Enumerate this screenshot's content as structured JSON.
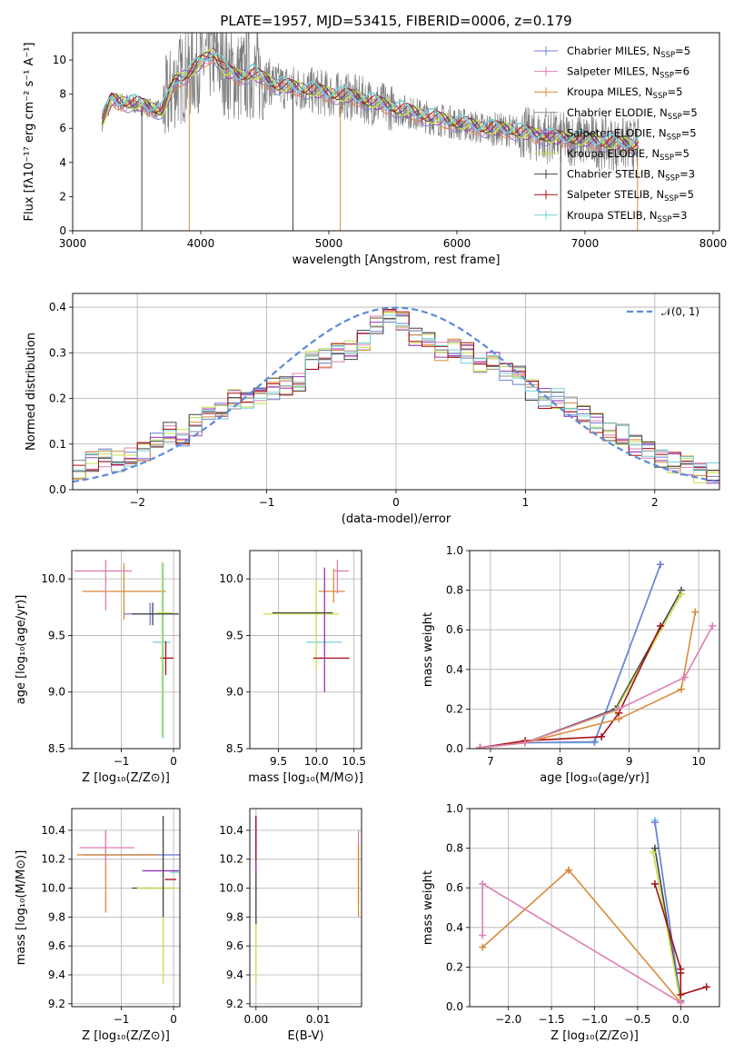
{
  "chart_data": [
    {
      "id": "spectrum",
      "type": "line",
      "title": "PLATE=1957, MJD=53415, FIBERID=0006, z=0.179",
      "xlabel": "wavelength [Angstrom, rest frame]",
      "ylabel": "Flux [fλ10⁻¹⁷ erg cm⁻² s⁻¹ A⁻¹]",
      "xlim": [
        3000,
        8050
      ],
      "ylim": [
        0,
        11.6
      ],
      "xticks": [
        3000,
        4000,
        5000,
        6000,
        7000,
        8000
      ],
      "yticks": [
        0,
        2,
        4,
        6,
        8,
        10
      ],
      "grid": false,
      "legend_position": "top-right",
      "legend": [
        {
          "name": "Chabrier MILES, N",
          "sub": "SSP",
          "suffix": "=5",
          "color": "#6f7fd8"
        },
        {
          "name": "Salpeter MILES, N",
          "sub": "SSP",
          "suffix": "=6",
          "color": "#e07fb4"
        },
        {
          "name": "Kroupa MILES, N",
          "sub": "SSP",
          "suffix": "=5",
          "color": "#d98a3a"
        },
        {
          "name": "Chabrier ELODIE, N",
          "sub": "SSP",
          "suffix": "=5",
          "color": "#8c8c8c"
        },
        {
          "name": "Salpeter ELODIE, N",
          "sub": "SSP",
          "suffix": "=5",
          "color": "#9a33b8"
        },
        {
          "name": "Kroupa ELODIE, N",
          "sub": "SSP",
          "suffix": "=5",
          "color": "#c4e04a"
        },
        {
          "name": "Chabrier STELIB, N",
          "sub": "SSP",
          "suffix": "=3",
          "color": "#444444"
        },
        {
          "name": "Salpeter STELIB, N",
          "sub": "SSP",
          "suffix": "=5",
          "color": "#a50f15"
        },
        {
          "name": "Kroupa STELIB, N",
          "sub": "SSP",
          "suffix": "=3",
          "color": "#73d1d8"
        }
      ],
      "model_continuum": {
        "x": [
          3230,
          3300,
          3400,
          3500,
          3600,
          3700,
          3800,
          3900,
          4000,
          4100,
          4200,
          4300,
          4400,
          4600,
          4800,
          5000,
          5200,
          5400,
          5600,
          5800,
          6000,
          6200,
          6400,
          6600,
          6800,
          7000,
          7200,
          7400
        ],
        "y": [
          6.4,
          7.6,
          7.5,
          7.4,
          7.2,
          7.0,
          8.7,
          9.2,
          9.8,
          10.4,
          9.3,
          9.0,
          9.2,
          8.5,
          8.3,
          8.0,
          7.8,
          7.4,
          7.0,
          6.6,
          6.3,
          6.0,
          5.9,
          5.6,
          5.4,
          5.3,
          5.1,
          5.0
        ]
      },
      "data_spikes": [
        {
          "x": 3540,
          "y": 0
        },
        {
          "x": 3910,
          "y": 0
        },
        {
          "x": 4720,
          "y": 0
        },
        {
          "x": 5090,
          "y": 0
        },
        {
          "x": 6810,
          "y": 0
        },
        {
          "x": 7410,
          "y": 0
        }
      ]
    },
    {
      "id": "residuals",
      "type": "line",
      "xlabel": "(data-model)/error",
      "ylabel": "Normed distribution",
      "xlim": [
        -2.5,
        2.5
      ],
      "ylim": [
        0,
        0.43
      ],
      "xticks": [
        -2,
        -1,
        0,
        1,
        2
      ],
      "yticks": [
        0.0,
        0.1,
        0.2,
        0.3,
        0.4
      ],
      "grid": true,
      "legend_position": "top-right",
      "legend": [
        {
          "name": "𝒩(0, 1)",
          "color": "#5b8bd9",
          "dash": true
        }
      ],
      "hist_bin_width": 0.1,
      "hist_bins_left": -2.5,
      "hist_heights": [
        0.04,
        0.06,
        0.065,
        0.06,
        0.075,
        0.08,
        0.1,
        0.13,
        0.12,
        0.14,
        0.16,
        0.18,
        0.2,
        0.2,
        0.21,
        0.22,
        0.23,
        0.24,
        0.28,
        0.29,
        0.3,
        0.31,
        0.33,
        0.36,
        0.38,
        0.37,
        0.33,
        0.32,
        0.3,
        0.31,
        0.3,
        0.27,
        0.28,
        0.26,
        0.25,
        0.22,
        0.2,
        0.2,
        0.18,
        0.16,
        0.15,
        0.13,
        0.12,
        0.1,
        0.085,
        0.07,
        0.06,
        0.05,
        0.04,
        0.035
      ]
    },
    {
      "id": "age-vs-Z",
      "type": "scatter",
      "xlabel": "Z [log₁₀(Z/Z⊙)]",
      "ylabel": "age  [log₁₀(age/yr)]",
      "xlim": [
        -1.95,
        0.12
      ],
      "ylim": [
        8.5,
        10.25
      ],
      "xticks": [
        -1,
        0
      ],
      "yticks": [
        8.5,
        9.0,
        9.5,
        10.0
      ],
      "grid": true,
      "points": [
        {
          "x": -0.2,
          "y": 9.44,
          "xerr": [
            0.2,
            0.15
          ],
          "yerr": [
            0.85,
            0.7
          ],
          "color": "#73d1d8"
        },
        {
          "x": -0.95,
          "y": 9.89,
          "xerr": [
            0.8,
            0.8
          ],
          "yerr": [
            0.25,
            0.25
          ],
          "color": "#d98a3a"
        },
        {
          "x": -1.3,
          "y": 10.07,
          "xerr": [
            0.6,
            0.5
          ],
          "yerr": [
            0.35,
            0.1
          ],
          "color": "#e07fb4"
        },
        {
          "x": -0.45,
          "y": 9.69,
          "xerr": [
            0.5,
            0.55
          ],
          "yerr": [
            0.1,
            0.1
          ],
          "color": "#6f7fd8"
        },
        {
          "x": -0.15,
          "y": 9.3,
          "xerr": [
            0.1,
            0.15
          ],
          "yerr": [
            0.15,
            0.15
          ],
          "color": "#a50f15"
        },
        {
          "x": -0.22,
          "y": 9.7,
          "xerr": [
            0.1,
            0.2
          ],
          "yerr": [
            1.1,
            0.45
          ],
          "color": "#c4e04a"
        },
        {
          "x": -0.4,
          "y": 9.69,
          "xerr": [
            0.4,
            0.5
          ],
          "yerr": [
            0.1,
            0.1
          ],
          "color": "#444444"
        }
      ]
    },
    {
      "id": "age-vs-mass",
      "type": "scatter",
      "xlabel": "mass [log₁₀(M/M⊙)]",
      "xlim": [
        9.12,
        10.6
      ],
      "ylim": [
        8.5,
        10.25
      ],
      "xticks": [
        9.5,
        10.0,
        10.5
      ],
      "yticks": [
        8.5,
        9.0,
        9.5,
        10.0
      ],
      "grid": true,
      "points": [
        {
          "x": 10.12,
          "y": 9.44,
          "xerr": [
            0.25,
            0.22
          ],
          "yerr": [
            0.0,
            0.0
          ],
          "color": "#73d1d8"
        },
        {
          "x": 10.23,
          "y": 9.89,
          "xerr": [
            0.2,
            0.15
          ],
          "yerr": [
            0.1,
            0.2
          ],
          "color": "#d98a3a"
        },
        {
          "x": 10.28,
          "y": 10.07,
          "xerr": [
            0.05,
            0.15
          ],
          "yerr": [
            0.2,
            0.1
          ],
          "color": "#e07fb4"
        },
        {
          "x": 10.0,
          "y": 9.69,
          "xerr": [
            0.7,
            0.3
          ],
          "yerr": [
            0.5,
            0.3
          ],
          "color": "#c4e04a"
        },
        {
          "x": 10.06,
          "y": 9.3,
          "xerr": [
            0.1,
            0.38
          ],
          "yerr": [
            0.0,
            0.0
          ],
          "color": "#a50f15"
        },
        {
          "x": 10.11,
          "y": 9.6,
          "xerr": [
            0.0,
            0.0
          ],
          "yerr": [
            0.6,
            0.5
          ],
          "color": "#9a33b8"
        },
        {
          "x": 10.02,
          "y": 9.7,
          "xerr": [
            0.6,
            0.2
          ],
          "yerr": [
            0.0,
            0.0
          ],
          "color": "#444444"
        }
      ]
    },
    {
      "id": "mass-weight-vs-age",
      "type": "line",
      "xlabel": "age  [log₁₀(age/yr)]",
      "ylabel": "mass weight",
      "xlim": [
        6.7,
        10.3
      ],
      "ylim": [
        0.0,
        1.0
      ],
      "xticks": [
        7,
        8,
        9,
        10
      ],
      "yticks": [
        0.0,
        0.2,
        0.4,
        0.6,
        0.8,
        1.0
      ],
      "grid": true,
      "series": [
        {
          "color": "#73d1d8",
          "x": [
            6.85,
            7.5,
            8.5,
            9.45
          ],
          "y": [
            0.005,
            0.03,
            0.03,
            0.93
          ]
        },
        {
          "color": "#6f7fd8",
          "x": [
            6.85,
            7.5,
            8.5,
            9.45
          ],
          "y": [
            0.005,
            0.03,
            0.035,
            0.93
          ]
        },
        {
          "color": "#444444",
          "x": [
            6.85,
            7.5,
            8.8,
            9.75
          ],
          "y": [
            0.005,
            0.03,
            0.2,
            0.8
          ]
        },
        {
          "color": "#c4e04a",
          "x": [
            6.85,
            7.5,
            8.8,
            9.75
          ],
          "y": [
            0.005,
            0.03,
            0.19,
            0.78
          ]
        },
        {
          "color": "#a50f15",
          "x": [
            6.85,
            7.5,
            8.6,
            8.85,
            9.45
          ],
          "y": [
            0.005,
            0.04,
            0.06,
            0.18,
            0.62
          ]
        },
        {
          "color": "#d98a3a",
          "x": [
            6.85,
            7.5,
            8.85,
            9.75,
            9.95
          ],
          "y": [
            0.005,
            0.03,
            0.15,
            0.3,
            0.69
          ]
        },
        {
          "color": "#e07fb4",
          "x": [
            6.85,
            7.5,
            8.85,
            9.8,
            10.2
          ],
          "y": [
            0.005,
            0.03,
            0.2,
            0.36,
            0.62
          ]
        }
      ]
    },
    {
      "id": "mass-vs-Z",
      "type": "scatter",
      "xlabel": "Z [log₁₀(Z/Z⊙)]",
      "ylabel": "mass [log₁₀(M/M⊙)]",
      "xlim": [
        -1.95,
        0.12
      ],
      "ylim": [
        9.18,
        10.55
      ],
      "xticks": [
        -1,
        0
      ],
      "yticks": [
        9.2,
        9.4,
        9.6,
        9.8,
        10.0,
        10.2,
        10.4
      ],
      "grid": true,
      "points": [
        {
          "x": -0.7,
          "y": 10.23,
          "xerr": [
            1.0,
            0.85
          ],
          "yerr": [
            0.0,
            0.0
          ],
          "color": "#6f7fd8"
        },
        {
          "x": -1.3,
          "y": 10.23,
          "xerr": [
            0.55,
            1.0
          ],
          "yerr": [
            0.4,
            0.17
          ],
          "color": "#d98a3a"
        },
        {
          "x": -1.3,
          "y": 10.28,
          "xerr": [
            0.5,
            0.55
          ],
          "yerr": [
            0.1,
            0.1
          ],
          "color": "#e07fb4"
        },
        {
          "x": -0.5,
          "y": 10.0,
          "xerr": [
            0.3,
            0.5
          ],
          "yerr": [
            0.0,
            0.0
          ],
          "color": "#444444"
        },
        {
          "x": -0.2,
          "y": 10.0,
          "xerr": [
            0.5,
            0.3
          ],
          "yerr": [
            0.66,
            0.3
          ],
          "color": "#c4e04a"
        },
        {
          "x": -0.3,
          "y": 10.12,
          "xerr": [
            0.3,
            0.4
          ],
          "yerr": [
            0.0,
            0.0
          ],
          "color": "#9a33b8"
        },
        {
          "x": -0.15,
          "y": 10.06,
          "xerr": [
            0.0,
            0.2
          ],
          "yerr": [
            0.0,
            0.0
          ],
          "color": "#a50f15"
        },
        {
          "x": -0.05,
          "y": 10.11,
          "xerr": [
            0.0,
            0.25
          ],
          "yerr": [
            0.0,
            0.0
          ],
          "color": "#73d1d8"
        },
        {
          "x": -0.2,
          "y": 10.3,
          "xerr": [
            0.0,
            0.0
          ],
          "yerr": [
            0.5,
            0.2
          ],
          "color": "#444444"
        }
      ]
    },
    {
      "id": "mass-vs-EBV",
      "type": "scatter",
      "xlabel": "E(B-V)",
      "xlim": [
        -0.001,
        0.017
      ],
      "ylim": [
        9.18,
        10.55
      ],
      "xticks": [
        0.0,
        0.01
      ],
      "yticks": [
        9.2,
        9.4,
        9.6,
        9.8,
        10.0,
        10.2,
        10.4
      ],
      "xtick_labels": [
        "0.00",
        "0.01"
      ],
      "grid": true,
      "points": [
        {
          "x": 0.0,
          "y": 10.0,
          "xerr": [
            0,
            0
          ],
          "yerr": [
            0.66,
            0.5
          ],
          "color": "#c4e04a"
        },
        {
          "x": 0.0,
          "y": 10.0,
          "xerr": [
            0,
            0
          ],
          "yerr": [
            0.25,
            0.35
          ],
          "color": "#73d1d8"
        },
        {
          "x": 0.0,
          "y": 10.2,
          "xerr": [
            0,
            0
          ],
          "yerr": [
            0.45,
            0.3
          ],
          "color": "#444444"
        },
        {
          "x": 0.0,
          "y": 10.3,
          "xerr": [
            0,
            0
          ],
          "yerr": [
            0.2,
            0.2
          ],
          "color": "#9a33b8"
        },
        {
          "x": 0.0,
          "y": 10.3,
          "xerr": [
            0,
            0
          ],
          "yerr": [
            0.1,
            0.2
          ],
          "color": "#a50f15"
        },
        {
          "x": 0.0165,
          "y": 10.1,
          "xerr": [
            0,
            0
          ],
          "yerr": [
            0.2,
            0.3
          ],
          "color": "#e07fb4"
        },
        {
          "x": 0.0165,
          "y": 10.1,
          "xerr": [
            0,
            0
          ],
          "yerr": [
            0.3,
            0.2
          ],
          "color": "#d98a3a"
        }
      ]
    },
    {
      "id": "mass-weight-vs-Z",
      "type": "line",
      "xlabel": "Z [log₁₀(Z/Z⊙)]",
      "ylabel": "mass weight",
      "xlim": [
        -2.45,
        0.45
      ],
      "ylim": [
        0.0,
        1.0
      ],
      "xticks": [
        -2.0,
        -1.5,
        -1.0,
        -0.5,
        0.0
      ],
      "yticks": [
        0.0,
        0.2,
        0.4,
        0.6,
        0.8,
        1.0
      ],
      "xtick_labels": [
        "−2.0",
        "−1.5",
        "−1.0",
        "−0.5",
        "0.0"
      ],
      "grid": true,
      "series": [
        {
          "color": "#73d1d8",
          "x": [
            -0.3,
            0.0
          ],
          "y": [
            0.94,
            0.03
          ]
        },
        {
          "color": "#6f7fd8",
          "x": [
            -0.3,
            0.0
          ],
          "y": [
            0.93,
            0.03
          ]
        },
        {
          "color": "#444444",
          "x": [
            -0.3,
            0.0
          ],
          "y": [
            0.8,
            0.02
          ]
        },
        {
          "color": "#c4e04a",
          "x": [
            -0.32,
            0.0
          ],
          "y": [
            0.78,
            0.02
          ]
        },
        {
          "color": "#a50f15",
          "x": [
            -0.3,
            0.0,
            0.0,
            0.0,
            0.3
          ],
          "y": [
            0.62,
            0.19,
            0.17,
            0.06,
            0.1
          ]
        },
        {
          "color": "#d98a3a",
          "x": [
            -2.3,
            -1.3,
            0.0,
            -1.3
          ],
          "y": [
            0.3,
            0.69,
            0.02,
            0.69
          ]
        },
        {
          "color": "#e07fb4",
          "x": [
            -2.3,
            -2.3,
            0.0
          ],
          "y": [
            0.36,
            0.62,
            0.02
          ]
        }
      ]
    }
  ]
}
